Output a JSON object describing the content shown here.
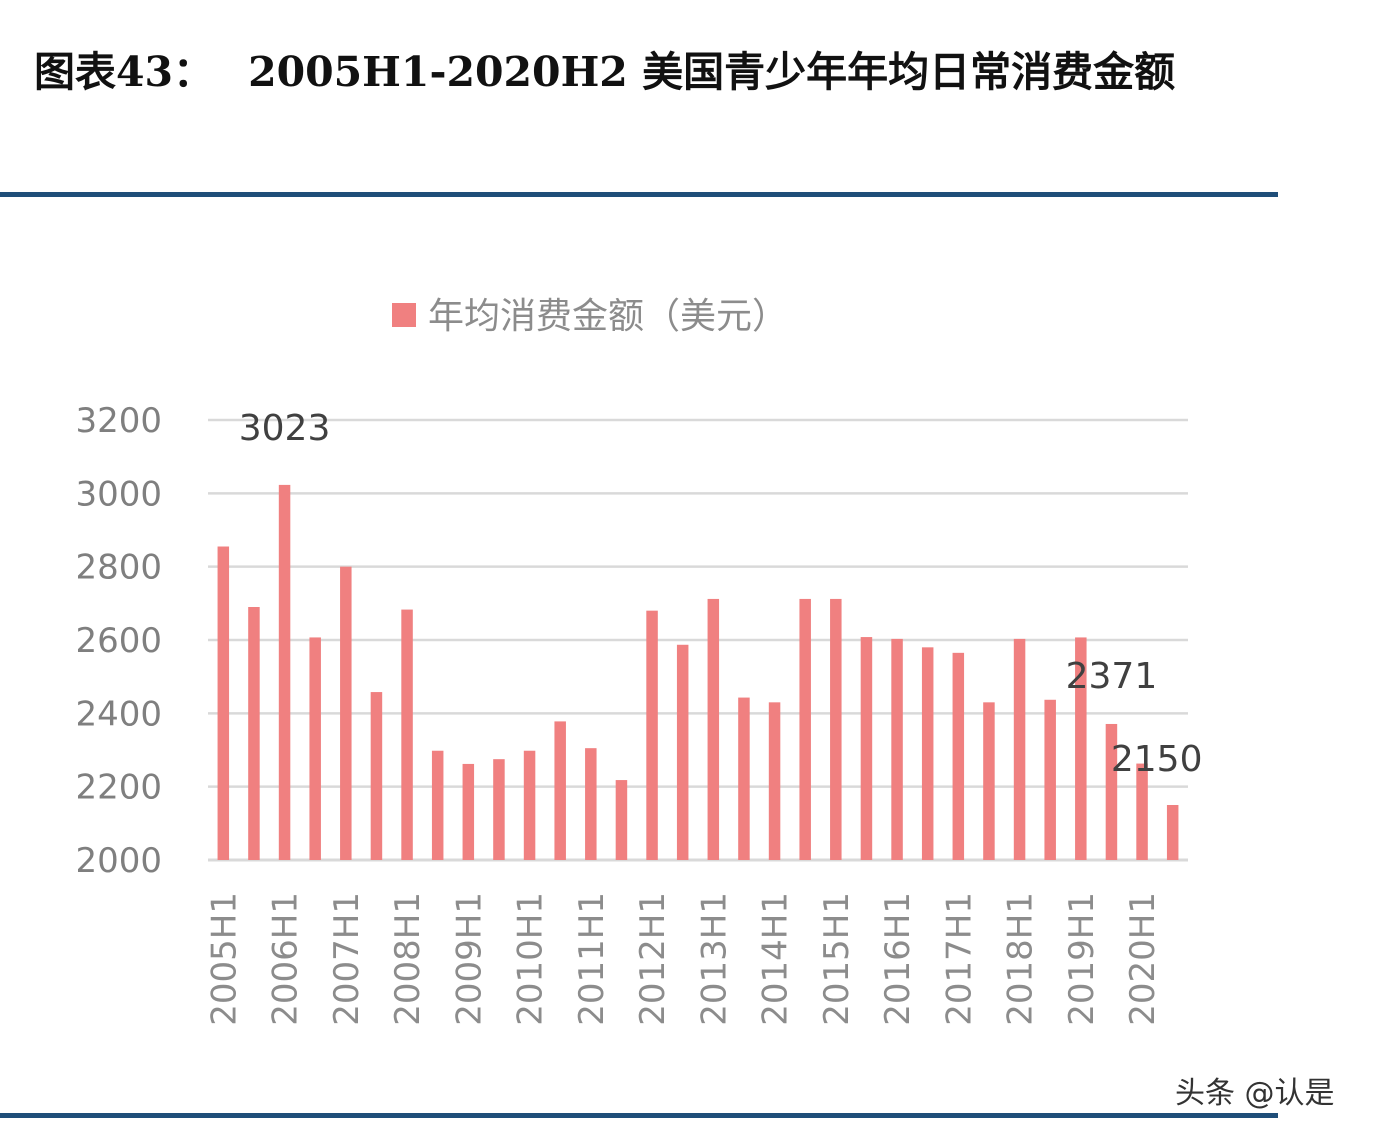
{
  "header": {
    "title_prefix": "图表43：",
    "title_main": "2005H1-2020H2 美国青少年年均日常消费金额"
  },
  "watermark": "头条 @认是",
  "colors": {
    "bar": "#f08080",
    "rule": "#1f4e79",
    "grid": "#d9d9d9"
  },
  "chart_data": {
    "type": "bar",
    "legend": "年均消费金额（美元）",
    "legend_position": "top",
    "ylim": [
      2000,
      3200
    ],
    "yticks": [
      2000,
      2200,
      2400,
      2600,
      2800,
      3000,
      3200
    ],
    "grid": true,
    "categories": [
      "2005H1",
      "2005H2",
      "2006H1",
      "2006H2",
      "2007H1",
      "2007H2",
      "2008H1",
      "2008H2",
      "2009H1",
      "2009H2",
      "2010H1",
      "2010H2",
      "2011H1",
      "2011H2",
      "2012H1",
      "2012H2",
      "2013H1",
      "2013H2",
      "2014H1",
      "2014H2",
      "2015H1",
      "2015H2",
      "2016H1",
      "2016H2",
      "2017H1",
      "2017H2",
      "2018H1",
      "2018H2",
      "2019H1",
      "2019H2",
      "2020H1",
      "2020H2"
    ],
    "xtick_labels": [
      "2005H1",
      "2006H1",
      "2007H1",
      "2008H1",
      "2009H1",
      "2010H1",
      "2011H1",
      "2012H1",
      "2013H1",
      "2014H1",
      "2015H1",
      "2016H1",
      "2017H1",
      "2018H1",
      "2019H1",
      "2020H1"
    ],
    "values": [
      2855,
      2690,
      3023,
      2607,
      2800,
      2458,
      2683,
      2298,
      2262,
      2275,
      2298,
      2378,
      2305,
      2218,
      2680,
      2587,
      2712,
      2443,
      2430,
      2712,
      2712,
      2608,
      2603,
      2580,
      2565,
      2430,
      2603,
      2437,
      2607,
      2371,
      2263,
      2150
    ],
    "data_labels": [
      {
        "index": 2,
        "text": "3023"
      },
      {
        "index": 29,
        "text": "2371"
      },
      {
        "index": 31,
        "text": "2150"
      }
    ]
  }
}
